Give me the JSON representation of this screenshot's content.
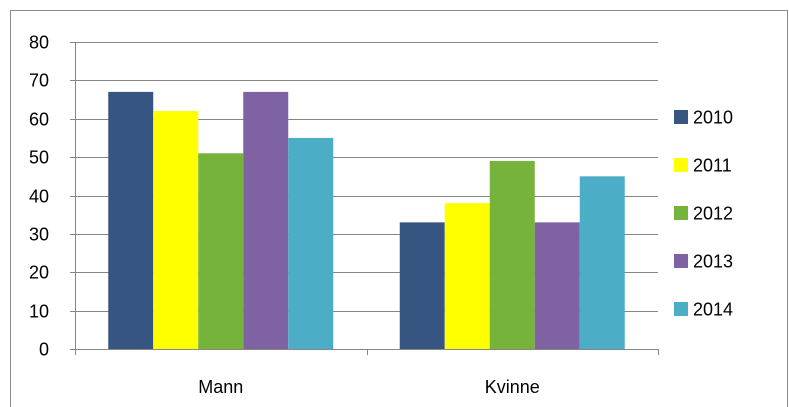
{
  "chart_data": {
    "type": "bar",
    "title": "",
    "xlabel": "",
    "ylabel": "",
    "categories": [
      "Mann",
      "Kvinne"
    ],
    "series": [
      {
        "name": "2010",
        "values": [
          67,
          33
        ],
        "color": "#375581"
      },
      {
        "name": "2011",
        "values": [
          62,
          38
        ],
        "color": "#FFFF00"
      },
      {
        "name": "2012",
        "values": [
          51,
          49
        ],
        "color": "#75B33B"
      },
      {
        "name": "2013",
        "values": [
          67,
          33
        ],
        "color": "#7F62A4"
      },
      {
        "name": "2014",
        "values": [
          55,
          45
        ],
        "color": "#4BAEC6"
      }
    ],
    "ylim": [
      0,
      80
    ],
    "yticks": [
      "0",
      "10",
      "20",
      "30",
      "40",
      "50",
      "60",
      "70",
      "80"
    ],
    "grid": true,
    "legend_position": "right"
  }
}
